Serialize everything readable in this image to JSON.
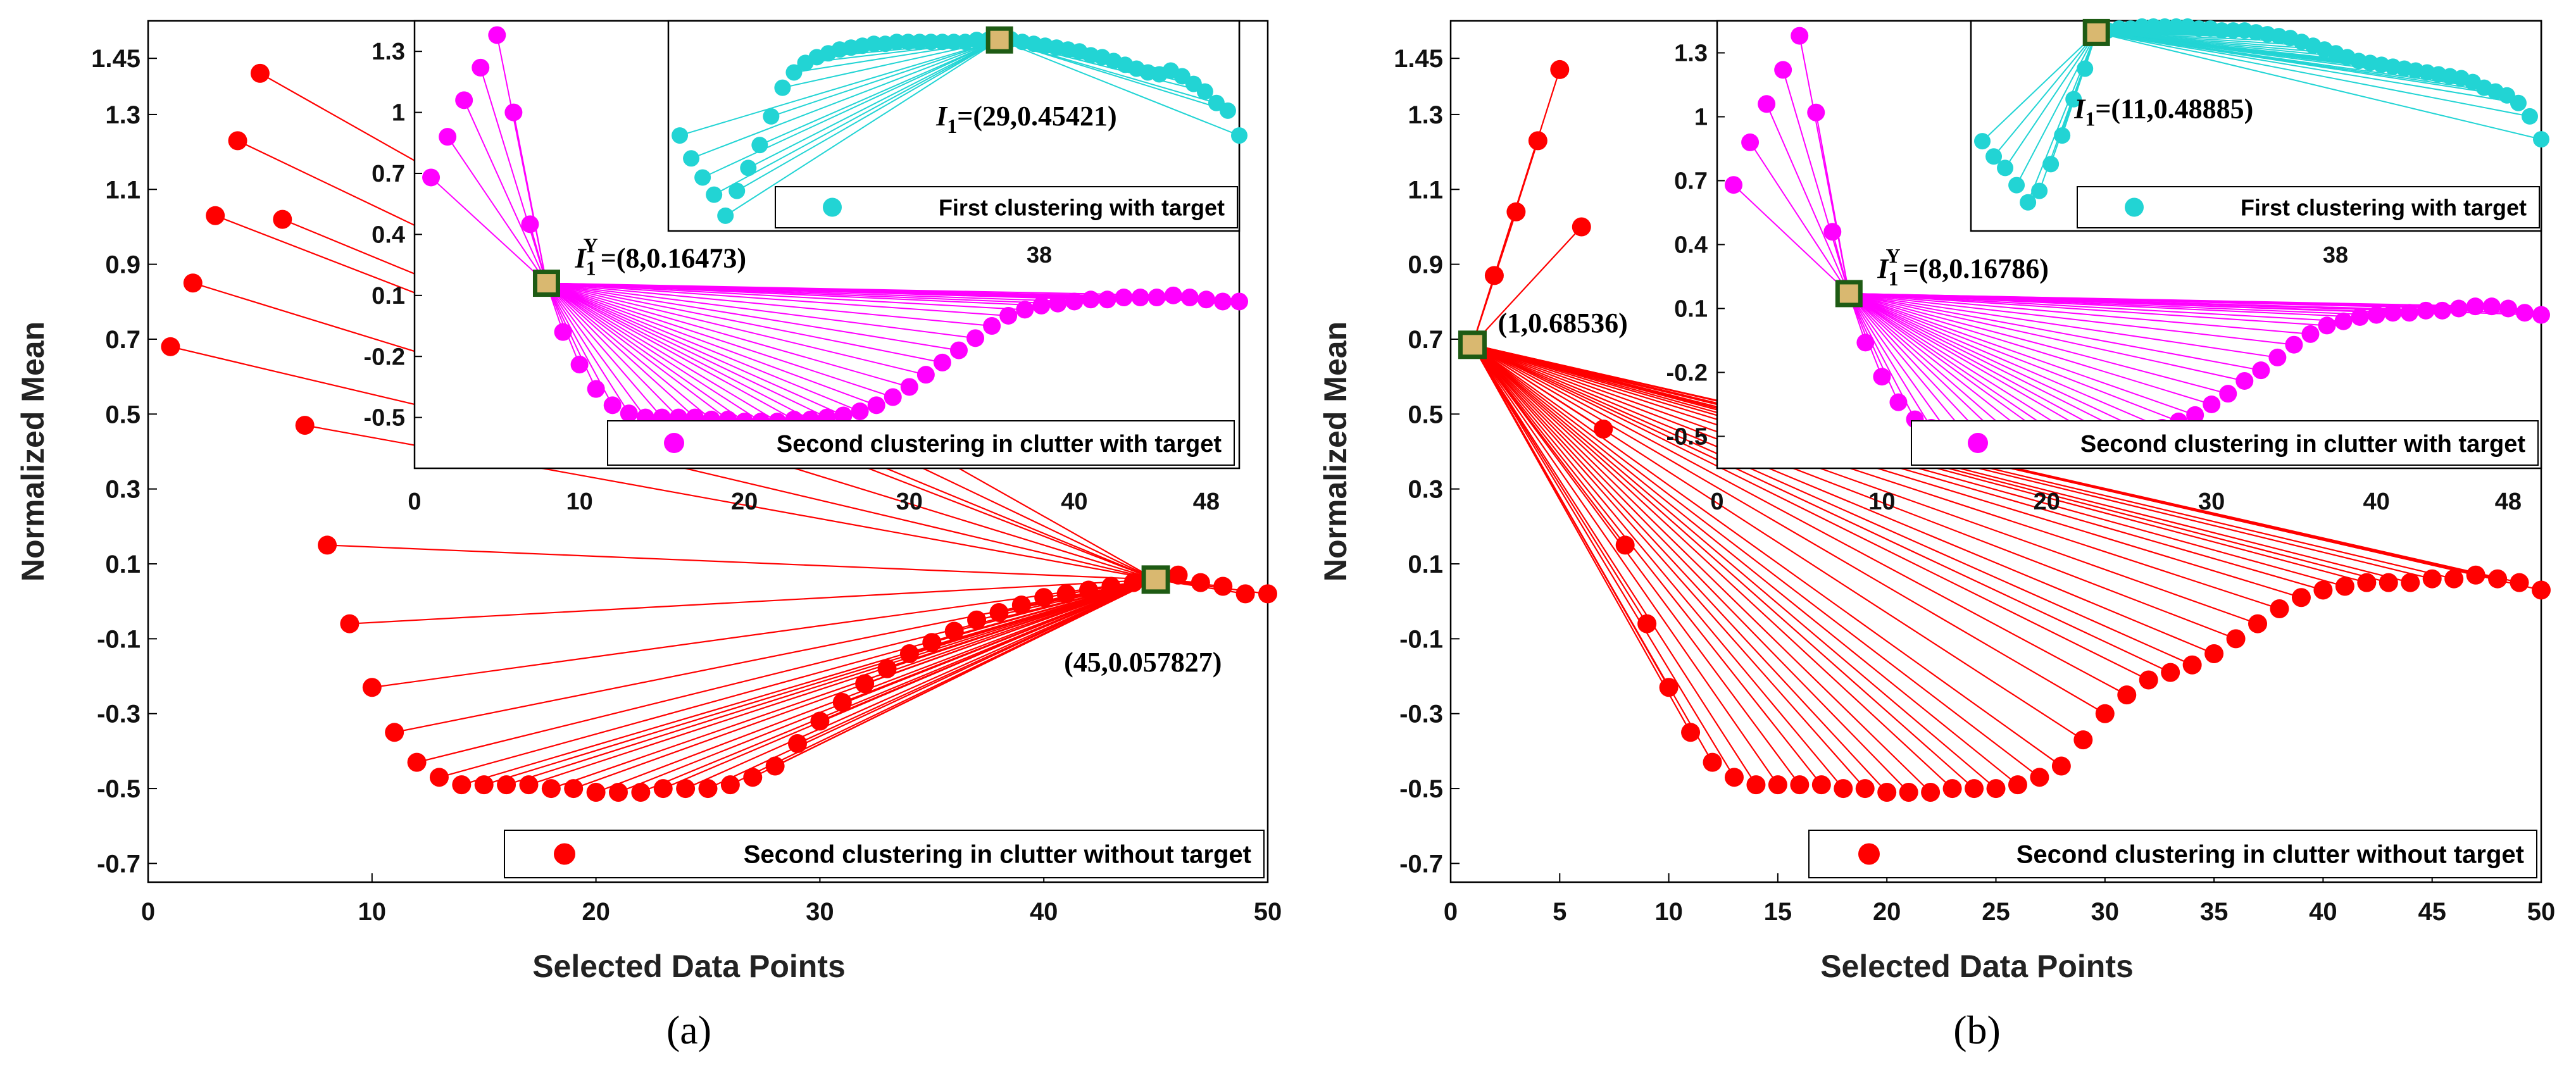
{
  "chart_data": [
    {
      "type": "scatter",
      "panel_label": "(a)",
      "xlabel": "Selected Data Points",
      "ylabel": "Normalized Mean",
      "xlim": [
        0,
        50
      ],
      "ylim": [
        -0.75,
        1.55
      ],
      "xticks": [
        "0",
        "10",
        "20",
        "30",
        "40",
        "50"
      ],
      "yticks": [
        "-0.7",
        "-0.5",
        "-0.3",
        "-0.1",
        "0.1",
        "0.3",
        "0.5",
        "0.7",
        "0.9",
        "1.1",
        "1.3",
        "1.45"
      ],
      "main": {
        "legend": "Second clustering in clutter without target",
        "color": "#ff0000",
        "center_index": 45,
        "center_label": "(45,0.057827)",
        "values": [
          0.68,
          0.85,
          1.03,
          1.23,
          1.41,
          1.02,
          0.47,
          0.15,
          -0.06,
          -0.23,
          -0.35,
          -0.43,
          -0.47,
          -0.49,
          -0.49,
          -0.49,
          -0.49,
          -0.5,
          -0.5,
          -0.51,
          -0.51,
          -0.51,
          -0.5,
          -0.5,
          -0.5,
          -0.49,
          -0.47,
          -0.44,
          -0.38,
          -0.32,
          -0.27,
          -0.22,
          -0.18,
          -0.14,
          -0.11,
          -0.08,
          -0.05,
          -0.03,
          -0.01,
          0.01,
          0.02,
          0.03,
          0.04,
          0.05,
          0.058,
          0.07,
          0.05,
          0.04,
          0.02,
          0.02
        ]
      },
      "inset_magenta": {
        "legend": "Second clustering in clutter with target",
        "color": "#ff00ff",
        "center_index": 8,
        "center_label": "=(8,0.16473)",
        "center_label_i": "I",
        "center_label_sub": "1",
        "center_label_sup": "Y",
        "xlim": [
          0,
          50
        ],
        "ylim": [
          -0.75,
          1.45
        ],
        "xticks": [
          "0",
          "10",
          "20",
          "30",
          "40",
          "48"
        ],
        "yticks": [
          "-0.5",
          "-0.2",
          "0.1",
          "0.4",
          "0.7",
          "1",
          "1.3"
        ],
        "values": [
          0.68,
          0.88,
          1.06,
          1.22,
          1.38,
          1.0,
          0.45,
          0.16,
          -0.08,
          -0.24,
          -0.36,
          -0.44,
          -0.48,
          -0.5,
          -0.5,
          -0.5,
          -0.5,
          -0.51,
          -0.51,
          -0.52,
          -0.52,
          -0.52,
          -0.51,
          -0.51,
          -0.5,
          -0.49,
          -0.47,
          -0.44,
          -0.4,
          -0.35,
          -0.29,
          -0.23,
          -0.17,
          -0.11,
          -0.05,
          0.0,
          0.03,
          0.05,
          0.06,
          0.07,
          0.08,
          0.08,
          0.09,
          0.09,
          0.09,
          0.1,
          0.09,
          0.08,
          0.07,
          0.07
        ]
      },
      "inset_cyan": {
        "legend": "First clustering with target",
        "color": "#22d4d4",
        "center_index": 29,
        "center_label": "=(29,0.45421)",
        "center_label_i": "I",
        "center_label_sub": "1",
        "xlabel_note": "38",
        "xlim": [
          0,
          50
        ],
        "ylim": [
          -0.55,
          0.55
        ],
        "values": [
          -0.05,
          -0.17,
          -0.27,
          -0.36,
          -0.47,
          -0.34,
          -0.22,
          -0.1,
          0.05,
          0.2,
          0.28,
          0.33,
          0.36,
          0.38,
          0.4,
          0.41,
          0.42,
          0.43,
          0.43,
          0.44,
          0.44,
          0.44,
          0.44,
          0.44,
          0.44,
          0.44,
          0.45,
          0.45,
          0.45,
          0.454,
          0.44,
          0.43,
          0.42,
          0.41,
          0.4,
          0.39,
          0.37,
          0.36,
          0.34,
          0.32,
          0.3,
          0.28,
          0.27,
          0.29,
          0.26,
          0.22,
          0.18,
          0.12,
          0.08,
          -0.05
        ]
      }
    },
    {
      "type": "scatter",
      "panel_label": "(b)",
      "xlabel": "Selected Data Points",
      "ylabel": "Normalized Mean",
      "xlim": [
        0,
        50
      ],
      "ylim": [
        -0.75,
        1.55
      ],
      "xticks": [
        "0",
        "5",
        "10",
        "15",
        "20",
        "25",
        "30",
        "35",
        "40",
        "45",
        "50"
      ],
      "yticks": [
        "-0.7",
        "-0.5",
        "-0.3",
        "-0.1",
        "0.1",
        "0.3",
        "0.5",
        "0.7",
        "0.9",
        "1.1",
        "1.3",
        "1.45"
      ],
      "main": {
        "legend": "Second clustering in clutter without target",
        "color": "#ff0000",
        "center_index": 1,
        "center_label": "(1,0.68536)",
        "values": [
          0.685,
          0.87,
          1.04,
          1.23,
          1.42,
          1.0,
          0.46,
          0.15,
          -0.06,
          -0.23,
          -0.35,
          -0.43,
          -0.47,
          -0.49,
          -0.49,
          -0.49,
          -0.49,
          -0.5,
          -0.5,
          -0.51,
          -0.51,
          -0.51,
          -0.5,
          -0.5,
          -0.5,
          -0.49,
          -0.47,
          -0.44,
          -0.37,
          -0.3,
          -0.25,
          -0.21,
          -0.19,
          -0.17,
          -0.14,
          -0.1,
          -0.06,
          -0.02,
          0.01,
          0.03,
          0.04,
          0.05,
          0.05,
          0.05,
          0.06,
          0.06,
          0.07,
          0.06,
          0.05,
          0.03
        ]
      },
      "inset_magenta": {
        "legend": "Second clustering in clutter with target",
        "color": "#ff00ff",
        "center_index": 8,
        "center_label": "=(8,0.16786)",
        "center_label_i": "I",
        "center_label_sub": "1",
        "center_label_sup": "Y",
        "xlim": [
          0,
          50
        ],
        "ylim": [
          -0.65,
          1.45
        ],
        "xticks": [
          "0",
          "10",
          "20",
          "30",
          "40",
          "48"
        ],
        "yticks": [
          "-0.5",
          "-0.2",
          "0.1",
          "0.4",
          "0.7",
          "1",
          "1.3"
        ],
        "values": [
          0.68,
          0.88,
          1.06,
          1.22,
          1.38,
          1.02,
          0.46,
          0.17,
          -0.06,
          -0.22,
          -0.34,
          -0.42,
          -0.46,
          -0.48,
          -0.48,
          -0.49,
          -0.49,
          -0.5,
          -0.5,
          -0.5,
          -0.51,
          -0.51,
          -0.5,
          -0.5,
          -0.49,
          -0.48,
          -0.46,
          -0.43,
          -0.4,
          -0.35,
          -0.3,
          -0.24,
          -0.19,
          -0.13,
          -0.07,
          -0.02,
          0.02,
          0.04,
          0.06,
          0.07,
          0.08,
          0.08,
          0.09,
          0.09,
          0.1,
          0.11,
          0.11,
          0.1,
          0.08,
          0.07
        ]
      },
      "inset_cyan": {
        "legend": "First clustering with target",
        "color": "#22d4d4",
        "center_index": 11,
        "center_label": "=(11,0.48885)",
        "center_label_i": "I",
        "center_label_sub": "1",
        "xlabel_note": "38",
        "xlim": [
          0,
          50
        ],
        "ylim": [
          -0.55,
          0.55
        ],
        "values": [
          -0.08,
          -0.16,
          -0.22,
          -0.31,
          -0.4,
          -0.34,
          -0.2,
          -0.05,
          0.14,
          0.3,
          0.489,
          0.5,
          0.51,
          0.51,
          0.52,
          0.52,
          0.52,
          0.52,
          0.52,
          0.51,
          0.51,
          0.5,
          0.5,
          0.5,
          0.49,
          0.48,
          0.47,
          0.46,
          0.44,
          0.42,
          0.4,
          0.38,
          0.36,
          0.34,
          0.33,
          0.32,
          0.31,
          0.3,
          0.29,
          0.28,
          0.27,
          0.26,
          0.25,
          0.23,
          0.2,
          0.18,
          0.16,
          0.12,
          0.05,
          -0.07
        ]
      }
    }
  ]
}
